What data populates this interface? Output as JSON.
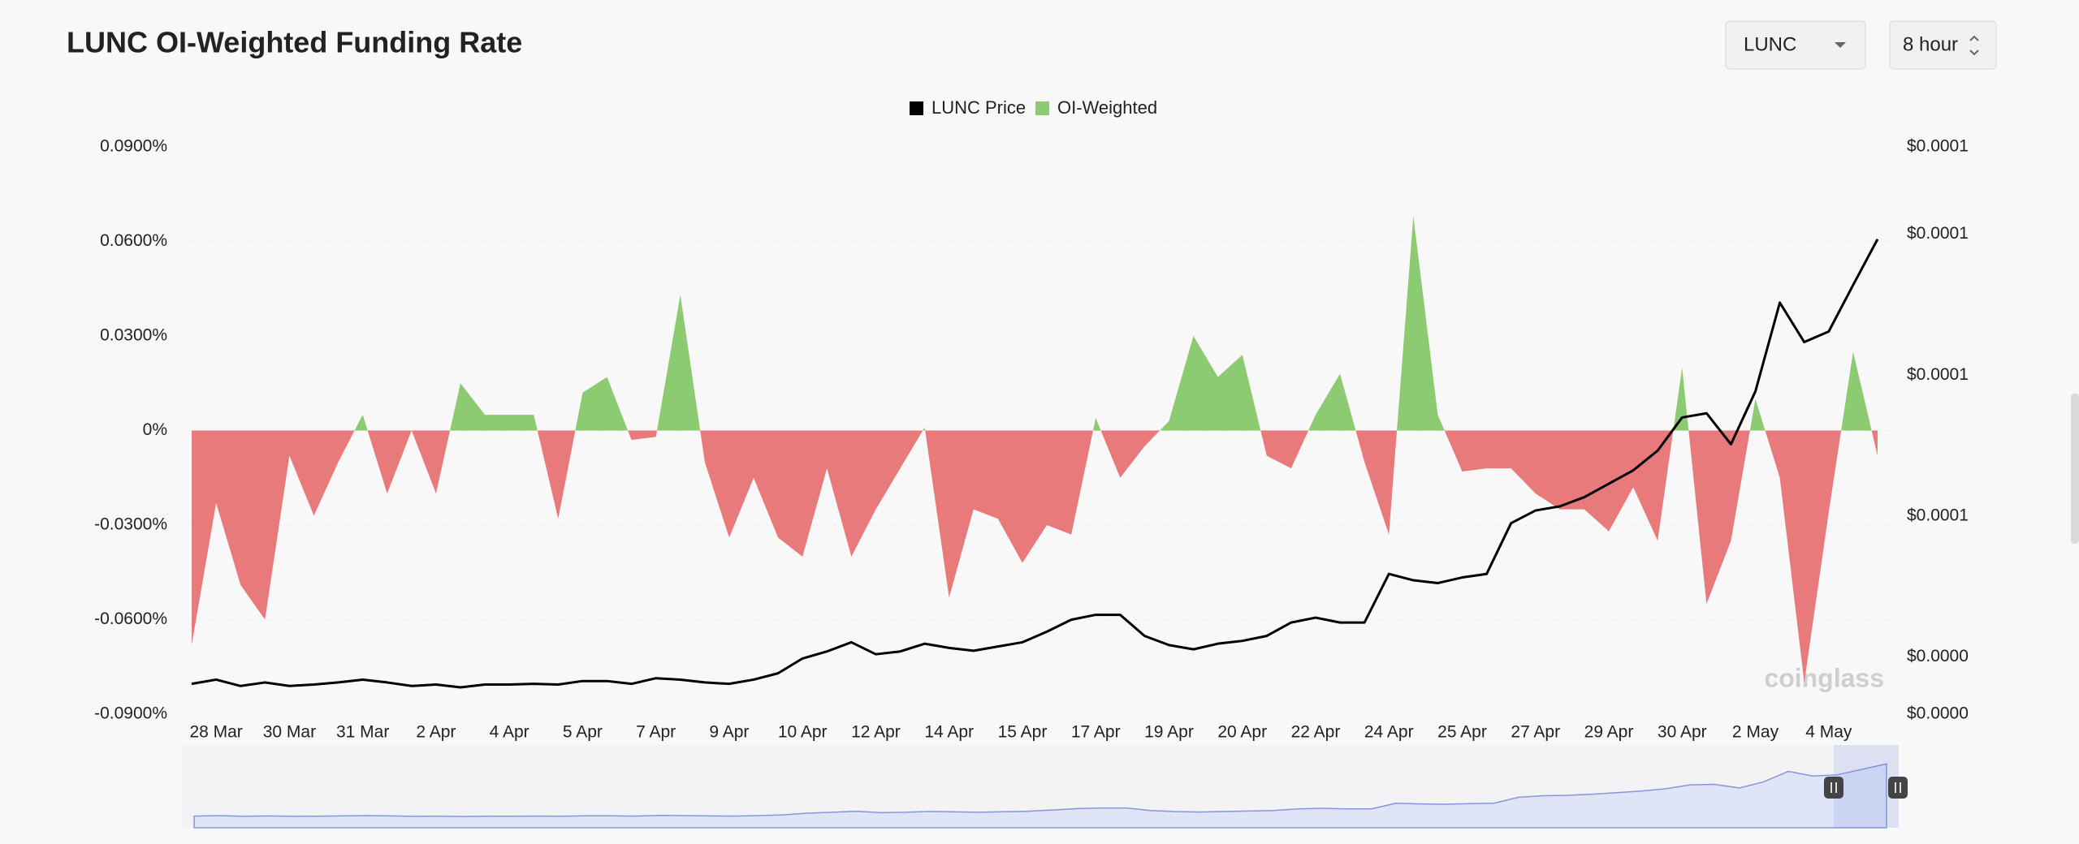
{
  "header": {
    "title": "LUNC OI-Weighted Funding Rate"
  },
  "controls": {
    "symbol": "LUNC",
    "interval": "8 hour"
  },
  "watermark": "coinglass",
  "chart_data": {
    "type": "area",
    "categories": [
      null,
      "28 Mar",
      null,
      null,
      "30 Mar",
      null,
      null,
      "31 Mar",
      null,
      null,
      "2 Apr",
      null,
      null,
      "4 Apr",
      null,
      null,
      "5 Apr",
      null,
      null,
      "7 Apr",
      null,
      null,
      "9 Apr",
      null,
      null,
      "10 Apr",
      null,
      null,
      "12 Apr",
      null,
      null,
      "14 Apr",
      null,
      null,
      "15 Apr",
      null,
      null,
      "17 Apr",
      null,
      null,
      "19 Apr",
      null,
      null,
      "20 Apr",
      null,
      null,
      "22 Apr",
      null,
      null,
      "24 Apr",
      null,
      null,
      "25 Apr",
      null,
      null,
      "27 Apr",
      null,
      null,
      "29 Apr",
      null,
      null,
      "30 Apr",
      null,
      null,
      "2 May",
      null,
      null,
      "4 May",
      null,
      null
    ],
    "series": [
      {
        "name": "LUNC Price",
        "type": "line",
        "axis": "y2",
        "color": "#000000",
        "values": [
          3.62e-05,
          3.68e-05,
          3.59e-05,
          3.64e-05,
          3.59e-05,
          3.61e-05,
          3.64e-05,
          3.68e-05,
          3.64e-05,
          3.59e-05,
          3.61e-05,
          3.57e-05,
          3.61e-05,
          3.61e-05,
          3.62e-05,
          3.61e-05,
          3.66e-05,
          3.66e-05,
          3.62e-05,
          3.7e-05,
          3.68e-05,
          3.64e-05,
          3.62e-05,
          3.68e-05,
          3.77e-05,
          3.98e-05,
          4.08e-05,
          4.21e-05,
          4.04e-05,
          4.08e-05,
          4.19e-05,
          4.13e-05,
          4.09e-05,
          4.15e-05,
          4.21e-05,
          4.36e-05,
          4.53e-05,
          4.6e-05,
          4.6e-05,
          4.3e-05,
          4.17e-05,
          4.11e-05,
          4.19e-05,
          4.23e-05,
          4.3e-05,
          4.49e-05,
          4.56e-05,
          4.49e-05,
          4.49e-05,
          5.18e-05,
          5.09e-05,
          5.05e-05,
          5.13e-05,
          5.18e-05,
          5.9e-05,
          6.08e-05,
          6.14e-05,
          6.27e-05,
          6.46e-05,
          6.65e-05,
          6.93e-05,
          7.4e-05,
          7.46e-05,
          7.02e-05,
          7.77e-05,
          9.03e-05,
          8.47e-05,
          8.62e-05,
          9.28e-05,
          9.93e-05
        ]
      },
      {
        "name": "OI-Weighted",
        "type": "area",
        "color": "#8dcb72",
        "negative_color": "#e87a7c",
        "values": [
          -0.068,
          -0.023,
          -0.049,
          -0.06,
          -0.008,
          -0.027,
          -0.01,
          0.005,
          -0.02,
          0,
          -0.02,
          0.015,
          0.005,
          0.005,
          0.005,
          -0.028,
          0.012,
          0.017,
          -0.003,
          -0.002,
          0.043,
          -0.01,
          -0.034,
          -0.015,
          -0.034,
          -0.04,
          -0.012,
          -0.04,
          -0.025,
          -0.012,
          0.001,
          -0.053,
          -0.025,
          -0.028,
          -0.042,
          -0.03,
          -0.033,
          0.004,
          -0.015,
          -0.005,
          0.003,
          0.03,
          0.017,
          0.024,
          -0.008,
          -0.012,
          0.005,
          0.018,
          -0.01,
          -0.033,
          0.068,
          0.005,
          -0.013,
          -0.012,
          -0.012,
          -0.02,
          -0.025,
          -0.025,
          -0.032,
          -0.018,
          -0.035,
          0.02,
          -0.055,
          -0.035,
          0.01,
          -0.015,
          -0.08,
          -0.026,
          0.025,
          -0.008
        ]
      }
    ],
    "ylim": [
      -0.09,
      0.09
    ],
    "yticks": [
      {
        "value": -0.09,
        "label": "-0.0900%"
      },
      {
        "value": -0.06,
        "label": "-0.0600%"
      },
      {
        "value": -0.03,
        "label": "-0.0300%"
      },
      {
        "value": 0,
        "label": "0%"
      },
      {
        "value": 0.03,
        "label": "0.0300%"
      },
      {
        "value": 0.06,
        "label": "0.0600%"
      },
      {
        "value": 0.09,
        "label": "0.0900%"
      }
    ],
    "y2lim": [
      3.19e-05,
      0.0001124
    ],
    "y2ticks": [
      {
        "value": 3.19e-05,
        "label": "$0.0000"
      },
      {
        "value": 4e-05,
        "label": "$0.0000"
      },
      {
        "value": 6e-05,
        "label": "$0.0001"
      },
      {
        "value": 8e-05,
        "label": "$0.0001"
      },
      {
        "value": 0.0001,
        "label": "$0.0001"
      },
      {
        "value": 0.0001124,
        "label": "$0.0001"
      }
    ],
    "grid": true,
    "legend": "top"
  }
}
